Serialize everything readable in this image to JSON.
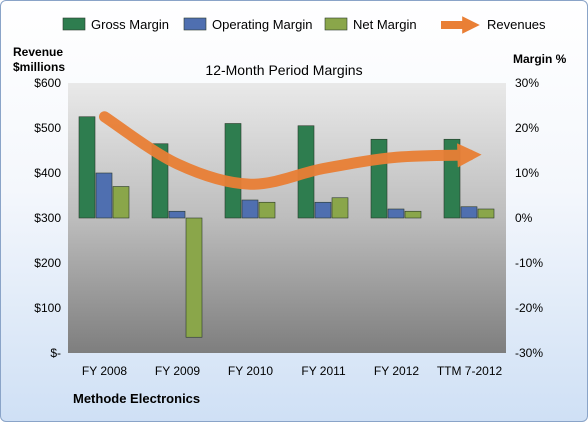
{
  "chart_data": {
    "type": "bar",
    "title": "12-Month Period Margins",
    "footer": "Methode Electronics",
    "left_axis": {
      "label_lines": [
        "Revenue",
        "$millions"
      ],
      "ylim": [
        0,
        600
      ],
      "ticks": [
        0,
        100,
        200,
        300,
        400,
        500,
        600
      ],
      "tick_labels": [
        "$-",
        "$100",
        "$200",
        "$300",
        "$400",
        "$500",
        "$600"
      ]
    },
    "right_axis": {
      "label": "Margin %",
      "ylim": [
        -30,
        30
      ],
      "ticks": [
        30,
        20,
        10,
        0,
        -10,
        -20,
        -30
      ],
      "tick_labels": [
        "30%",
        "20%",
        "10%",
        "0%",
        "-10%",
        "-20%",
        "-30%"
      ]
    },
    "categories": [
      "FY 2008",
      "FY 2009",
      "FY 2010",
      "FY 2011",
      "FY 2012",
      "TTM 7-2012"
    ],
    "series": [
      {
        "name": "Gross Margin",
        "axis": "right",
        "type": "bar",
        "color": "#2e7d4f",
        "values": [
          22.5,
          16.5,
          21.0,
          20.5,
          17.5,
          17.5
        ]
      },
      {
        "name": "Operating Margin",
        "axis": "right",
        "type": "bar",
        "color": "#4f6fb0",
        "values": [
          10.0,
          1.5,
          4.0,
          3.5,
          2.0,
          2.5
        ]
      },
      {
        "name": "Net Margin",
        "axis": "right",
        "type": "bar",
        "color": "#8aa64a",
        "values": [
          7.0,
          -26.5,
          3.5,
          4.5,
          1.5,
          2.0
        ]
      },
      {
        "name": "Revenues",
        "axis": "left",
        "type": "line",
        "color": "#e97f35",
        "values": [
          525,
          420,
          375,
          410,
          435,
          440
        ]
      }
    ],
    "legend_position": "top",
    "grid": false
  }
}
